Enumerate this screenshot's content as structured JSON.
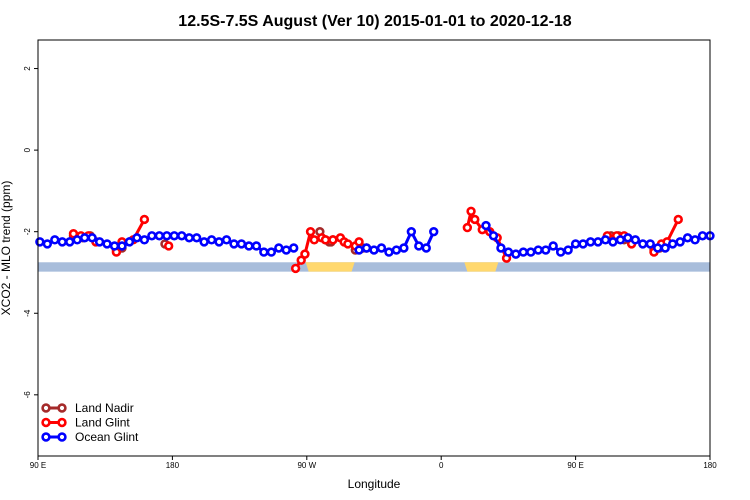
{
  "chart_data": {
    "type": "line",
    "title": "12.5S-7.5S August (Ver 10)   2015-01-01 to 2020-12-18",
    "xlabel": "Longitude",
    "ylabel": "XCO2 - MLO trend (ppm)",
    "xlim": [
      -90,
      270
    ],
    "ylim": [
      -7.5,
      2.7
    ],
    "x_ticks": [
      {
        "value": -90,
        "label": "90 E"
      },
      {
        "value": -18,
        "label": "180"
      },
      {
        "value": 54,
        "label": "90 W"
      },
      {
        "value": 126,
        "label": "0"
      },
      {
        "value": 198,
        "label": "90 E"
      },
      {
        "value": 270,
        "label": "180"
      }
    ],
    "y_ticks": [
      2,
      0,
      -2,
      -4,
      -6
    ],
    "legend_position": "bottom-left",
    "grid": false,
    "land_band": {
      "y_from": -2.75,
      "y_to": -2.98,
      "ocean_color": "#a8bddb",
      "land_color": "#ffd86e"
    },
    "series": [
      {
        "name": "Land Nadir",
        "color": "#a52a2a",
        "x": [
          -71,
          -66,
          -62,
          -48,
          -45,
          -22,
          61,
          64,
          66,
          67,
          68,
          80,
          84,
          86,
          217,
          221,
          224,
          240,
          243
        ],
        "y": [
          -2.1,
          -2.15,
          -2.1,
          -2.45,
          -2.4,
          -2.3,
          -2.0,
          -2.2,
          -2.25,
          -2.25,
          -2.2,
          -2.45,
          -2.4,
          -2.4,
          -2.1,
          -2.1,
          -2.2,
          -2.45,
          -2.4
        ]
      },
      {
        "name": "Land Glint",
        "color": "#ff0000",
        "x": [
          -71,
          -67,
          -63,
          -59,
          -48,
          -45,
          -39,
          -33,
          -20,
          48,
          51,
          53,
          56,
          58,
          62,
          64,
          68,
          72,
          74,
          76,
          80,
          82,
          140,
          142,
          144,
          148,
          152,
          156,
          161,
          215,
          220,
          224,
          228,
          240,
          244,
          247,
          253
        ],
        "y": [
          -2.05,
          -2.1,
          -2.1,
          -2.25,
          -2.5,
          -2.25,
          -2.2,
          -1.7,
          -2.35,
          -2.9,
          -2.7,
          -2.55,
          -2.0,
          -2.2,
          -2.15,
          -2.2,
          -2.2,
          -2.15,
          -2.25,
          -2.3,
          -2.35,
          -2.25,
          -1.9,
          -1.5,
          -1.7,
          -1.95,
          -2.0,
          -2.15,
          -2.65,
          -2.1,
          -2.1,
          -2.1,
          -2.3,
          -2.5,
          -2.3,
          -2.25,
          -1.7
        ]
      },
      {
        "name": "Ocean Glint",
        "color": "#0000ff",
        "x": [
          -89,
          -85,
          -81,
          -77,
          -73,
          -69,
          -65,
          -61,
          -57,
          -53,
          -49,
          -45,
          -41,
          -37,
          -33,
          -29,
          -25,
          -21,
          -17,
          -13,
          -9,
          -5,
          -1,
          3,
          7,
          11,
          15,
          19,
          23,
          27,
          31,
          35,
          39,
          43,
          47,
          82,
          86,
          90,
          94,
          98,
          102,
          106,
          110,
          114,
          118,
          122,
          150,
          154,
          158,
          162,
          166,
          170,
          174,
          178,
          182,
          186,
          190,
          194,
          198,
          202,
          206,
          210,
          214,
          218,
          222,
          226,
          230,
          234,
          238,
          242,
          246,
          250,
          254,
          258,
          262,
          266,
          270
        ],
        "y": [
          -2.25,
          -2.3,
          -2.2,
          -2.25,
          -2.25,
          -2.2,
          -2.15,
          -2.15,
          -2.25,
          -2.3,
          -2.35,
          -2.35,
          -2.25,
          -2.15,
          -2.2,
          -2.1,
          -2.1,
          -2.1,
          -2.1,
          -2.1,
          -2.15,
          -2.15,
          -2.25,
          -2.2,
          -2.25,
          -2.2,
          -2.3,
          -2.3,
          -2.35,
          -2.35,
          -2.5,
          -2.5,
          -2.4,
          -2.45,
          -2.4,
          -2.45,
          -2.4,
          -2.45,
          -2.4,
          -2.5,
          -2.45,
          -2.4,
          -2.0,
          -2.35,
          -2.4,
          -2.0,
          -1.85,
          -2.1,
          -2.4,
          -2.5,
          -2.55,
          -2.5,
          -2.5,
          -2.45,
          -2.45,
          -2.35,
          -2.5,
          -2.45,
          -2.3,
          -2.3,
          -2.25,
          -2.25,
          -2.2,
          -2.25,
          -2.2,
          -2.15,
          -2.2,
          -2.3,
          -2.3,
          -2.4,
          -2.4,
          -2.3,
          -2.25,
          -2.15,
          -2.2,
          -2.1,
          -2.1
        ]
      }
    ]
  }
}
